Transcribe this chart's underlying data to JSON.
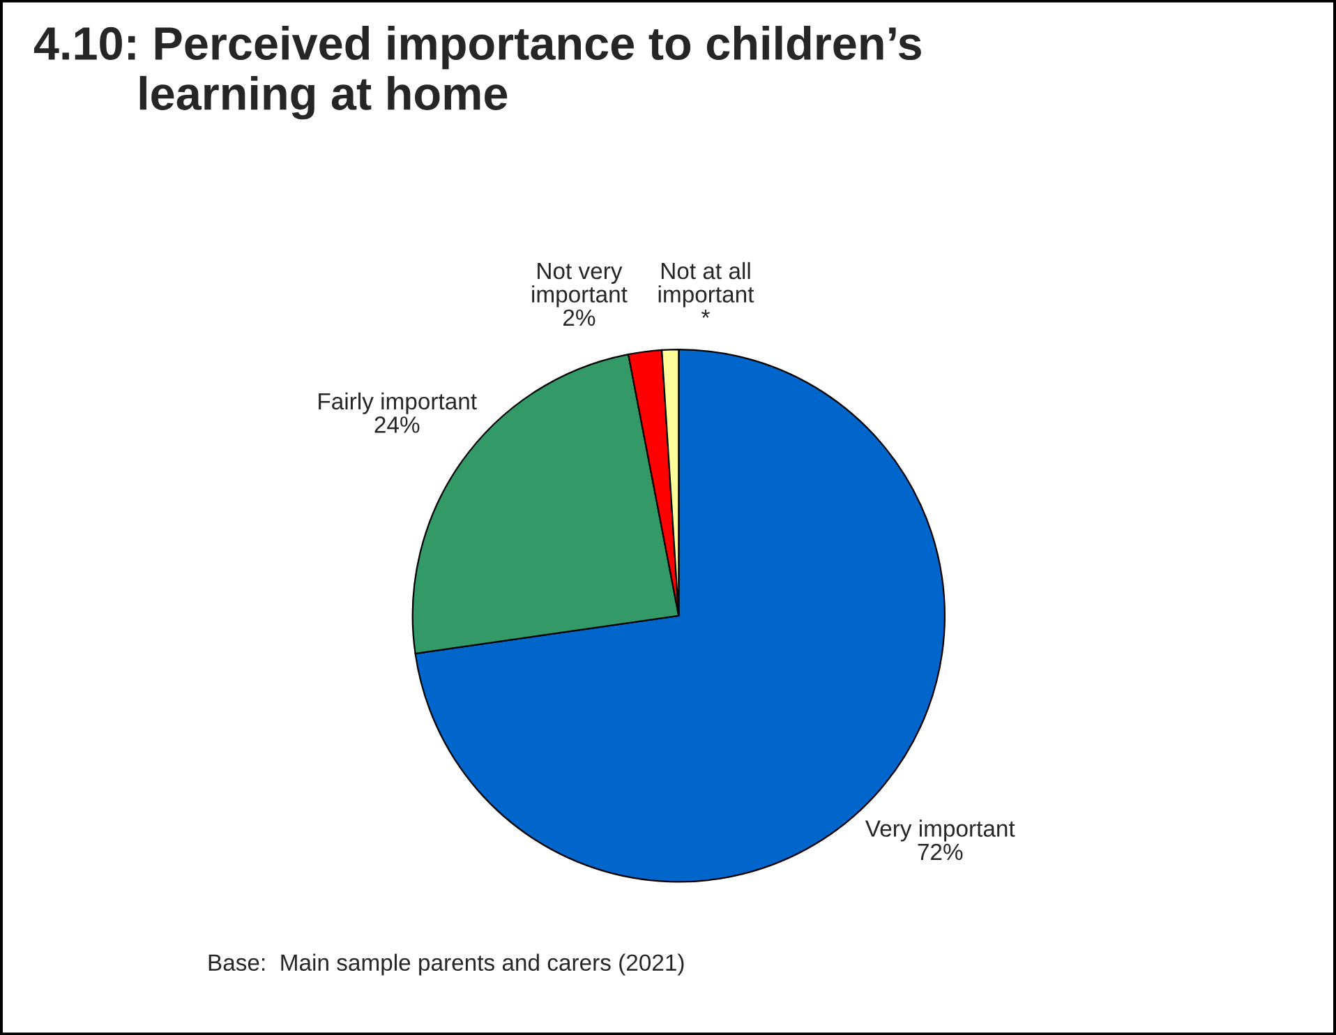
{
  "chart_data": {
    "type": "pie",
    "title": "4.10: Perceived importance to children’s\n        learning at home",
    "categories": [
      "Very important",
      "Fairly important",
      "Not very\nimportant",
      "Not at all\nimportant"
    ],
    "values": [
      72,
      24,
      2,
      1
    ],
    "value_labels": [
      "72%",
      "24%",
      "2%",
      "*"
    ],
    "colors": [
      "#0066cc",
      "#339966",
      "#ff0000",
      "#ffff99"
    ],
    "legend": false,
    "annotations": [
      "Base:  Main sample parents and carers (2021)"
    ]
  }
}
